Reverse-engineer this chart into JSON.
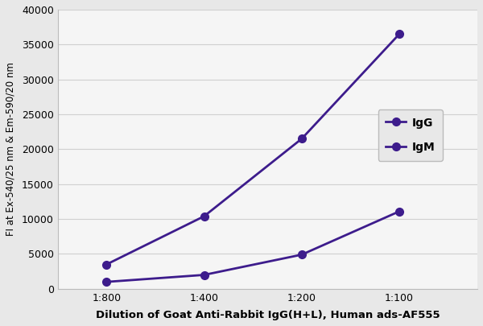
{
  "x_labels": [
    "1:800",
    "1:400",
    "1:200",
    "1:100"
  ],
  "x_values": [
    1,
    2,
    3,
    4
  ],
  "IgG_values": [
    3500,
    10400,
    21500,
    36500
  ],
  "IgM_values": [
    1000,
    2000,
    4900,
    11100
  ],
  "line_color": "#3D1C8C",
  "title": "",
  "ylabel": "FI at Ex-540/25 nm & Em-590/20 nm",
  "xlabel": "Dilution of Goat Anti-Rabbit IgG(H+L), Human ads-AF555",
  "ylim": [
    0,
    40000
  ],
  "yticks": [
    0,
    5000,
    10000,
    15000,
    20000,
    25000,
    30000,
    35000,
    40000
  ],
  "legend_labels": [
    "IgG",
    "IgM"
  ],
  "bg_color": "#e8e8e8",
  "plot_bg_color": "#f5f5f5",
  "grid_color": "#d0d0d0"
}
